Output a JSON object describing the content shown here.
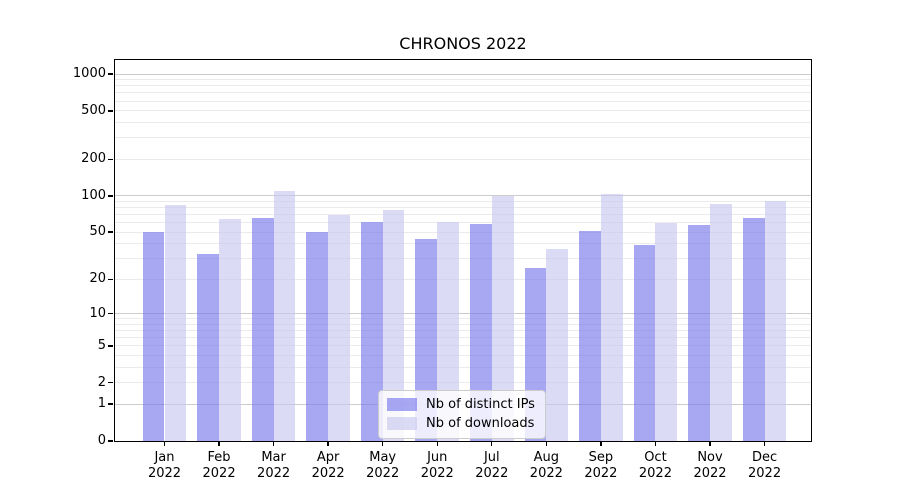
{
  "chart_data": {
    "type": "bar",
    "title": "CHRONOS 2022",
    "categories": [
      "Jan",
      "Feb",
      "Mar",
      "Apr",
      "May",
      "Jun",
      "Jul",
      "Aug",
      "Sep",
      "Oct",
      "Nov",
      "Dec"
    ],
    "x_tick_year": "2022",
    "series": [
      {
        "name": "Nb of distinct IPs",
        "color": "rgba(120,120,235,0.65)",
        "values": [
          50,
          33,
          65,
          50,
          61,
          44,
          59,
          25,
          51,
          39,
          57,
          65
        ]
      },
      {
        "name": "Nb of downloads",
        "color": "rgba(200,200,240,0.65)",
        "values": [
          84,
          64,
          110,
          70,
          76,
          61,
          100,
          36,
          103,
          60,
          86,
          91
        ]
      }
    ],
    "y_axis": {
      "scale": "log1p",
      "ticks": [
        1000,
        500,
        200,
        100,
        50,
        20,
        10,
        5,
        2,
        1,
        0
      ],
      "major_gridlines": [
        1,
        10,
        100,
        1000
      ],
      "ylim": [
        0,
        1330
      ],
      "grid": true
    },
    "legend": {
      "position": "lower-center"
    },
    "colors": {
      "grid_major": "#cccccc",
      "grid_minor": "#ebebeb",
      "axis": "#000000",
      "background": "#ffffff"
    }
  }
}
